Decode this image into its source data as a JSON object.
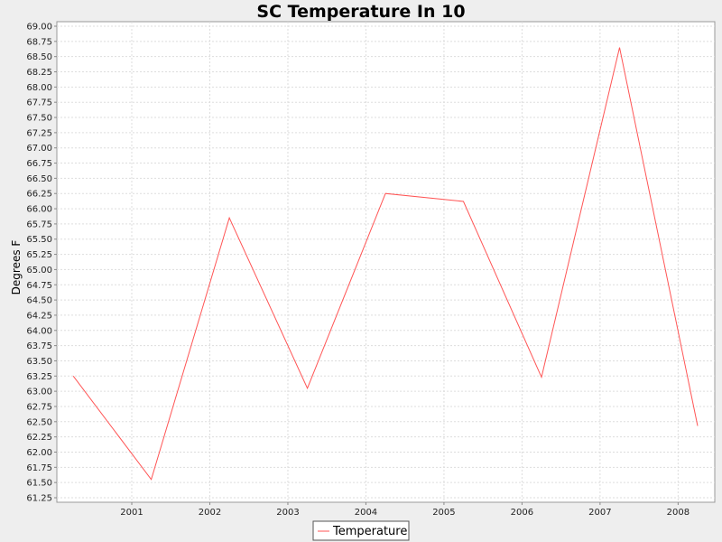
{
  "chart_data": {
    "type": "line",
    "title": "SC Temperature In 10",
    "xlabel": "",
    "ylabel": "Degrees F",
    "x_tick_labels": [
      "2001",
      "2002",
      "2003",
      "2004",
      "2005",
      "2006",
      "2007",
      "2008"
    ],
    "ylim": [
      61.25,
      69.0
    ],
    "y_tick_step": 0.25,
    "grid": true,
    "legend_position": "bottom-center",
    "series": [
      {
        "name": "Temperature",
        "color": "#ff5555",
        "points": [
          {
            "x": "2000-10",
            "y": 63.25
          },
          {
            "x": "2001-10",
            "y": 61.55
          },
          {
            "x": "2002-10",
            "y": 65.85
          },
          {
            "x": "2003-10",
            "y": 63.05
          },
          {
            "x": "2004-10",
            "y": 66.25
          },
          {
            "x": "2005-10",
            "y": 66.12
          },
          {
            "x": "2006-10",
            "y": 63.23
          },
          {
            "x": "2007-10",
            "y": 68.65
          },
          {
            "x": "2008-10",
            "y": 62.43
          }
        ]
      }
    ]
  }
}
